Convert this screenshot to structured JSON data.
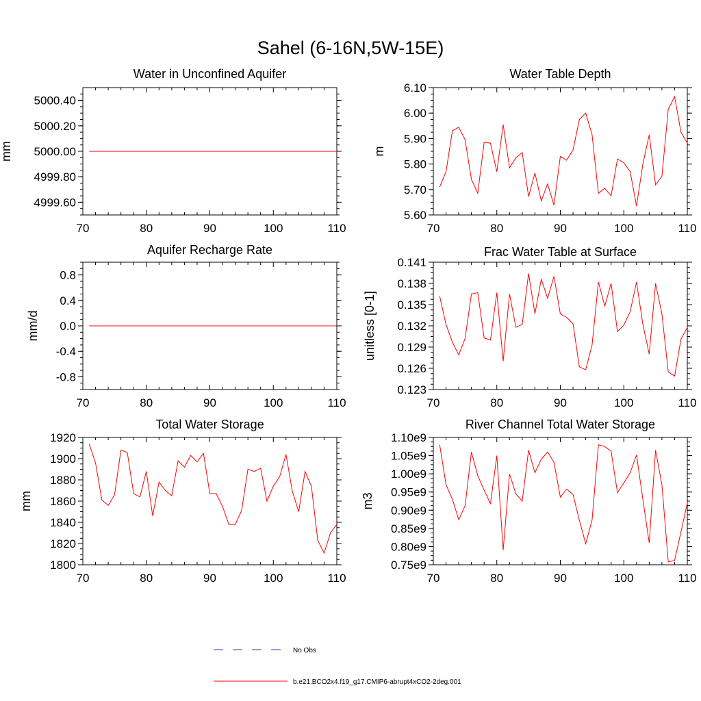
{
  "figure_title": "Sahel (6-16N,5W-15E)",
  "colors": {
    "model": "#ff0000",
    "obs": "#1f3fbf",
    "axis": "#000000"
  },
  "legend": [
    {
      "label": "No Obs",
      "style": "dashed",
      "color": "#1f3fbf"
    },
    {
      "label": "b.e21.BCO2x4.f19_g17.CMIP6-abrupt4xCO2-2deg.001",
      "style": "solid",
      "color": "#ff0000"
    }
  ],
  "chart_data": [
    {
      "type": "line",
      "title": "Water in Unconfined Aquifer",
      "xlabel": "",
      "ylabel": "mm",
      "xlim": [
        70,
        110
      ],
      "ylim": [
        4999.5,
        5000.5
      ],
      "xticks": [
        70,
        80,
        90,
        100,
        110
      ],
      "yticks": [
        4999.6,
        4999.8,
        5000.0,
        5000.2,
        5000.4
      ],
      "yticklabels": [
        "4999.60",
        "4999.80",
        "5000.00",
        "5000.20",
        "5000.40"
      ],
      "x": [
        71,
        72,
        73,
        74,
        75,
        76,
        77,
        78,
        79,
        80,
        81,
        82,
        83,
        84,
        85,
        86,
        87,
        88,
        89,
        90,
        91,
        92,
        93,
        94,
        95,
        96,
        97,
        98,
        99,
        100,
        101,
        102,
        103,
        104,
        105,
        106,
        107,
        108,
        109,
        110
      ],
      "series": [
        {
          "name": "b.e21.BCO2x4.f19_g17.CMIP6-abrupt4xCO2-2deg.001",
          "values": [
            5000,
            5000,
            5000,
            5000,
            5000,
            5000,
            5000,
            5000,
            5000,
            5000,
            5000,
            5000,
            5000,
            5000,
            5000,
            5000,
            5000,
            5000,
            5000,
            5000,
            5000,
            5000,
            5000,
            5000,
            5000,
            5000,
            5000,
            5000,
            5000,
            5000,
            5000,
            5000,
            5000,
            5000,
            5000,
            5000,
            5000,
            5000,
            5000,
            5000
          ]
        }
      ]
    },
    {
      "type": "line",
      "title": "Water Table Depth",
      "xlabel": "",
      "ylabel": "m",
      "xlim": [
        70,
        110
      ],
      "ylim": [
        5.6,
        6.1
      ],
      "xticks": [
        70,
        80,
        90,
        100,
        110
      ],
      "yticks": [
        5.6,
        5.7,
        5.8,
        5.9,
        6.0,
        6.1
      ],
      "yticklabels": [
        "5.60",
        "5.70",
        "5.80",
        "5.90",
        "6.00",
        "6.10"
      ],
      "x": [
        71,
        72,
        73,
        74,
        75,
        76,
        77,
        78,
        79,
        80,
        81,
        82,
        83,
        84,
        85,
        86,
        87,
        88,
        89,
        90,
        91,
        92,
        93,
        94,
        95,
        96,
        97,
        98,
        99,
        100,
        101,
        102,
        103,
        104,
        105,
        106,
        107,
        108,
        109,
        110
      ],
      "series": [
        {
          "name": "b.e21.BCO2x4.f19_g17.CMIP6-abrupt4xCO2-2deg.001",
          "values": [
            5.71,
            5.77,
            5.93,
            5.945,
            5.895,
            5.74,
            5.685,
            5.885,
            5.882,
            5.77,
            5.955,
            5.785,
            5.825,
            5.845,
            5.672,
            5.765,
            5.655,
            5.722,
            5.638,
            5.83,
            5.815,
            5.855,
            5.975,
            6.0,
            5.915,
            5.685,
            5.705,
            5.675,
            5.82,
            5.805,
            5.77,
            5.635,
            5.8,
            5.915,
            5.718,
            5.752,
            6.015,
            6.065,
            5.925,
            5.882
          ]
        }
      ]
    },
    {
      "type": "line",
      "title": "Aquifer Recharge Rate",
      "xlabel": "",
      "ylabel": "mm/d",
      "xlim": [
        70,
        110
      ],
      "ylim": [
        -1.0,
        1.0
      ],
      "xticks": [
        70,
        80,
        90,
        100,
        110
      ],
      "yticks": [
        -0.8,
        -0.4,
        0.0,
        0.4,
        0.8
      ],
      "yticklabels": [
        "-0.8",
        "-0.4",
        "0.0",
        "0.4",
        "0.8"
      ],
      "x": [
        71,
        72,
        73,
        74,
        75,
        76,
        77,
        78,
        79,
        80,
        81,
        82,
        83,
        84,
        85,
        86,
        87,
        88,
        89,
        90,
        91,
        92,
        93,
        94,
        95,
        96,
        97,
        98,
        99,
        100,
        101,
        102,
        103,
        104,
        105,
        106,
        107,
        108,
        109,
        110
      ],
      "series": [
        {
          "name": "b.e21.BCO2x4.f19_g17.CMIP6-abrupt4xCO2-2deg.001",
          "values": [
            0,
            0,
            0,
            0,
            0,
            0,
            0,
            0,
            0,
            0,
            0,
            0,
            0,
            0,
            0,
            0,
            0,
            0,
            0,
            0,
            0,
            0,
            0,
            0,
            0,
            0,
            0,
            0,
            0,
            0,
            0,
            0,
            0,
            0,
            0,
            0,
            0,
            0,
            0,
            0
          ]
        }
      ]
    },
    {
      "type": "line",
      "title": "Frac Water Table at Surface",
      "xlabel": "",
      "ylabel": "unitless [0-1]",
      "xlim": [
        70,
        110
      ],
      "ylim": [
        0.123,
        0.141
      ],
      "xticks": [
        70,
        80,
        90,
        100,
        110
      ],
      "yticks": [
        0.123,
        0.126,
        0.129,
        0.132,
        0.135,
        0.138,
        0.141
      ],
      "yticklabels": [
        "0.123",
        "0.126",
        "0.129",
        "0.132",
        "0.135",
        "0.138",
        "0.141"
      ],
      "x": [
        71,
        72,
        73,
        74,
        75,
        76,
        77,
        78,
        79,
        80,
        81,
        82,
        83,
        84,
        85,
        86,
        87,
        88,
        89,
        90,
        91,
        92,
        93,
        94,
        95,
        96,
        97,
        98,
        99,
        100,
        101,
        102,
        103,
        104,
        105,
        106,
        107,
        108,
        109,
        110
      ],
      "series": [
        {
          "name": "b.e21.BCO2x4.f19_g17.CMIP6-abrupt4xCO2-2deg.001",
          "values": [
            0.1362,
            0.1322,
            0.1297,
            0.1279,
            0.1302,
            0.1365,
            0.1367,
            0.1303,
            0.13,
            0.1367,
            0.127,
            0.1365,
            0.1318,
            0.1322,
            0.1394,
            0.1337,
            0.1386,
            0.1359,
            0.139,
            0.1337,
            0.1332,
            0.1323,
            0.1262,
            0.1258,
            0.1293,
            0.1382,
            0.1348,
            0.138,
            0.1312,
            0.1321,
            0.134,
            0.1382,
            0.1322,
            0.128,
            0.138,
            0.1337,
            0.1255,
            0.1249,
            0.1301,
            0.1318
          ]
        }
      ]
    },
    {
      "type": "line",
      "title": "Total Water Storage",
      "xlabel": "",
      "ylabel": "mm",
      "xlim": [
        70,
        110
      ],
      "ylim": [
        1800,
        1920
      ],
      "xticks": [
        70,
        80,
        90,
        100,
        110
      ],
      "yticks": [
        1800,
        1820,
        1840,
        1860,
        1880,
        1900,
        1920
      ],
      "yticklabels": [
        "1800",
        "1820",
        "1840",
        "1860",
        "1880",
        "1900",
        "1920"
      ],
      "x": [
        71,
        72,
        73,
        74,
        75,
        76,
        77,
        78,
        79,
        80,
        81,
        82,
        83,
        84,
        85,
        86,
        87,
        88,
        89,
        90,
        91,
        92,
        93,
        94,
        95,
        96,
        97,
        98,
        99,
        100,
        101,
        102,
        103,
        104,
        105,
        106,
        107,
        108,
        109,
        110
      ],
      "series": [
        {
          "name": "b.e21.BCO2x4.f19_g17.CMIP6-abrupt4xCO2-2deg.001",
          "values": [
            1914,
            1896,
            1861,
            1856,
            1866,
            1908,
            1906,
            1867,
            1864,
            1888,
            1846,
            1878,
            1870,
            1865,
            1898,
            1892,
            1903,
            1897,
            1905,
            1867,
            1867,
            1855,
            1838,
            1838,
            1851,
            1890,
            1888,
            1891,
            1860,
            1874,
            1883,
            1904,
            1869,
            1850,
            1888,
            1874,
            1823,
            1811,
            1830,
            1838
          ]
        }
      ]
    },
    {
      "type": "line",
      "title": "River Channel Total Water Storage",
      "xlabel": "",
      "ylabel": "m3",
      "xlim": [
        70,
        110
      ],
      "ylim": [
        750000000.0,
        1100000000.0
      ],
      "xticks": [
        70,
        80,
        90,
        100,
        110
      ],
      "yticks": [
        750000000.0,
        800000000.0,
        850000000.0,
        900000000.0,
        950000000.0,
        1000000000.0,
        1050000000.0,
        1100000000.0
      ],
      "yticklabels": [
        "0.75e9",
        "0.80e9",
        "0.85e9",
        "0.90e9",
        "0.95e9",
        "1.00e9",
        "1.05e9",
        "1.10e9"
      ],
      "x": [
        71,
        72,
        73,
        74,
        75,
        76,
        77,
        78,
        79,
        80,
        81,
        82,
        83,
        84,
        85,
        86,
        87,
        88,
        89,
        90,
        91,
        92,
        93,
        94,
        95,
        96,
        97,
        98,
        99,
        100,
        101,
        102,
        103,
        104,
        105,
        106,
        107,
        108,
        109,
        110
      ],
      "series": [
        {
          "name": "b.e21.BCO2x4.f19_g17.CMIP6-abrupt4xCO2-2deg.001",
          "values": [
            1080000000.0,
            970000000.0,
            930000000.0,
            874000000.0,
            912000000.0,
            1060000000.0,
            995000000.0,
            955000000.0,
            918000000.0,
            1050000000.0,
            790000000.0,
            1000000000.0,
            945000000.0,
            925000000.0,
            1065000000.0,
            1003000000.0,
            1040000000.0,
            1060000000.0,
            1032000000.0,
            936000000.0,
            958000000.0,
            943000000.0,
            872000000.0,
            808000000.0,
            873000000.0,
            1080000000.0,
            1075000000.0,
            1062000000.0,
            948000000.0,
            975000000.0,
            1003000000.0,
            1052000000.0,
            930000000.0,
            810000000.0,
            1065000000.0,
            970000000.0,
            758000000.0,
            762000000.0,
            840000000.0,
            920000000.0
          ]
        }
      ]
    }
  ]
}
